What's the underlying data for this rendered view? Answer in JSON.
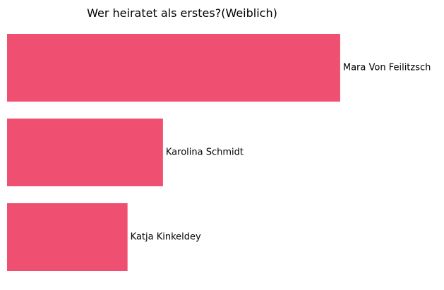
{
  "colors": {
    "bar": "#ef4f70",
    "background": "#ffffff",
    "text": "#000000"
  },
  "chart_data": {
    "type": "bar",
    "orientation": "horizontal",
    "title": "Wer heiratet als erstes?(Weiblich)",
    "categories": [
      "Mara Von Feilitzsch",
      "Karolina Schmidt",
      "Katja Kinkeldey"
    ],
    "values": [
      47,
      22,
      17
    ],
    "xlim": [
      0,
      50
    ],
    "xlabel": "",
    "ylabel": "",
    "grid": false,
    "axes_visible": false,
    "labels_position": "right of bar"
  }
}
